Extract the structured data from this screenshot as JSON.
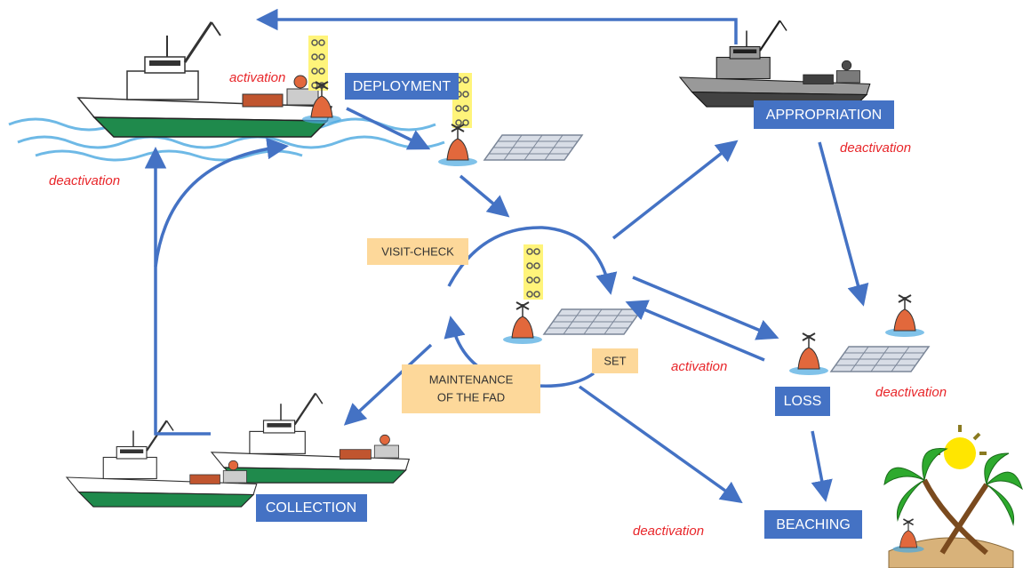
{
  "stages": [
    "DEPLOYMENT",
    "APPROPRIATION",
    "LOSS",
    "COLLECTION",
    "BEACHING"
  ],
  "actions": [
    [
      "VISIT-CHECK"
    ],
    [
      "MAINTENANCE",
      "OF THE FAD"
    ],
    [
      "SET"
    ]
  ],
  "status_labels": [
    "activation",
    "deactivation",
    "deactivation",
    "activation",
    "deactivation",
    "deactivation"
  ]
}
